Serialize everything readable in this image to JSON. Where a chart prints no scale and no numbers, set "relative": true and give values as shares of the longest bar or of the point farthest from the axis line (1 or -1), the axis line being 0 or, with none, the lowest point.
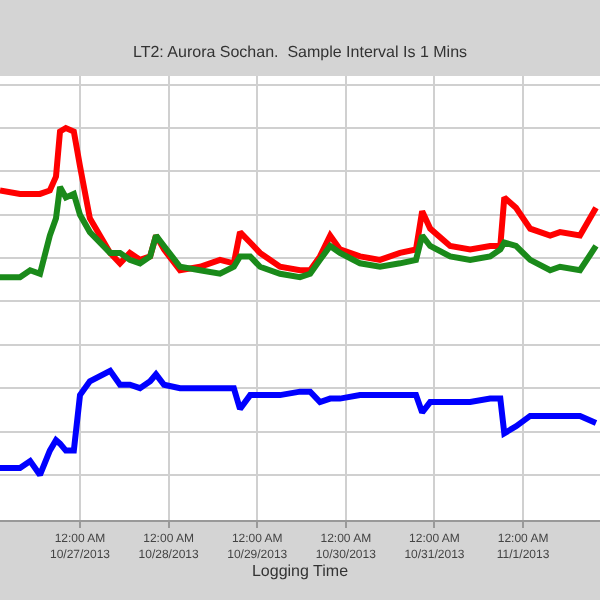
{
  "chart_data": {
    "type": "line",
    "title": "LT2: Aurora Sochan.  Sample Interval Is 1 Mins",
    "xlabel": "Logging Time",
    "relative": true,
    "grid": true,
    "marker": "none",
    "line_style": "solid",
    "x": [
      "2013-10-26T02:20",
      "2013-10-26T07:45",
      "2013-10-26T10:30",
      "2013-10-26T13:10",
      "2013-10-26T15:50",
      "2013-10-26T17:30",
      "2013-10-26T18:35",
      "2013-10-26T20:10",
      "2013-10-26T22:20",
      "2013-10-27T00:00",
      "2013-10-27T02:40",
      "2013-10-27T08:10",
      "2013-10-27T10:50",
      "2013-10-27T13:30",
      "2013-10-27T16:15",
      "2013-10-27T19:00",
      "2013-10-27T20:35",
      "2013-10-27T22:45",
      "2013-10-28T03:05",
      "2013-10-28T08:30",
      "2013-10-28T13:55",
      "2013-10-28T17:40",
      "2013-10-28T19:20",
      "2013-10-28T22:05",
      "2013-10-29T00:45",
      "2013-10-29T06:10",
      "2013-10-29T11:35",
      "2013-10-29T14:20",
      "2013-10-29T17:00",
      "2013-10-29T19:45",
      "2013-10-29T22:25",
      "2013-10-30T03:50",
      "2013-10-30T09:15",
      "2013-10-30T14:40",
      "2013-10-30T19:00",
      "2013-10-30T20:40",
      "2013-10-30T22:50",
      "2013-10-31T04:15",
      "2013-10-31T09:40",
      "2013-10-31T15:05",
      "2013-10-31T17:50",
      "2013-10-31T18:55",
      "2013-10-31T22:05",
      "2013-11-01T01:55",
      "2013-11-01T07:20",
      "2013-11-01T10:00",
      "2013-11-01T15:25",
      "2013-11-01T19:45"
    ],
    "xlim": [
      "2013-10-26T02:20",
      "2013-11-01T20:50"
    ],
    "xticks": [
      {
        "value": "2013-10-27",
        "label": "12:00 AM\n10/27/2013"
      },
      {
        "value": "2013-10-28",
        "label": "12:00 AM\n10/28/2013"
      },
      {
        "value": "2013-10-29",
        "label": "12:00 AM\n10/29/2013"
      },
      {
        "value": "2013-10-30",
        "label": "12:00 AM\n10/30/2013"
      },
      {
        "value": "2013-10-31",
        "label": "12:00 AM\n10/31/2013"
      },
      {
        "value": "2013-11-01",
        "label": "12:00 AM\n11/1/2013"
      }
    ],
    "series": [
      {
        "color": "#ff0000",
        "values": [
          0.82,
          0.81,
          0.81,
          0.81,
          0.82,
          0.86,
          0.99,
          1,
          0.99,
          0.89,
          0.74,
          0.64,
          0.61,
          0.64,
          0.62,
          0.63,
          0.69,
          0.65,
          0.59,
          0.6,
          0.62,
          0.61,
          0.7,
          0.67,
          0.64,
          0.6,
          0.59,
          0.59,
          0.63,
          0.69,
          0.65,
          0.63,
          0.62,
          0.64,
          0.65,
          0.76,
          0.71,
          0.66,
          0.65,
          0.66,
          0.66,
          0.8,
          0.77,
          0.71,
          0.69,
          0.7,
          0.69,
          0.77
        ]
      },
      {
        "color": "#1a8a1a",
        "values": [
          0.57,
          0.57,
          0.59,
          0.58,
          0.69,
          0.74,
          0.83,
          0.8,
          0.81,
          0.75,
          0.7,
          0.64,
          0.64,
          0.62,
          0.61,
          0.63,
          0.69,
          0.66,
          0.6,
          0.59,
          0.58,
          0.6,
          0.63,
          0.63,
          0.6,
          0.58,
          0.57,
          0.58,
          0.62,
          0.66,
          0.64,
          0.61,
          0.6,
          0.61,
          0.62,
          0.69,
          0.66,
          0.63,
          0.62,
          0.63,
          0.65,
          0.67,
          0.66,
          0.62,
          0.59,
          0.6,
          0.59,
          0.66
        ]
      },
      {
        "color": "#0000ff",
        "values": [
          0.02,
          0.02,
          0.04,
          0,
          0.07,
          0.1,
          0.09,
          0.07,
          0.07,
          0.23,
          0.27,
          0.3,
          0.26,
          0.26,
          0.25,
          0.27,
          0.29,
          0.26,
          0.25,
          0.25,
          0.25,
          0.25,
          0.19,
          0.23,
          0.23,
          0.23,
          0.24,
          0.24,
          0.21,
          0.22,
          0.22,
          0.23,
          0.23,
          0.23,
          0.23,
          0.18,
          0.21,
          0.21,
          0.21,
          0.22,
          0.22,
          0.12,
          0.14,
          0.17,
          0.17,
          0.17,
          0.17,
          0.15
        ]
      }
    ]
  }
}
